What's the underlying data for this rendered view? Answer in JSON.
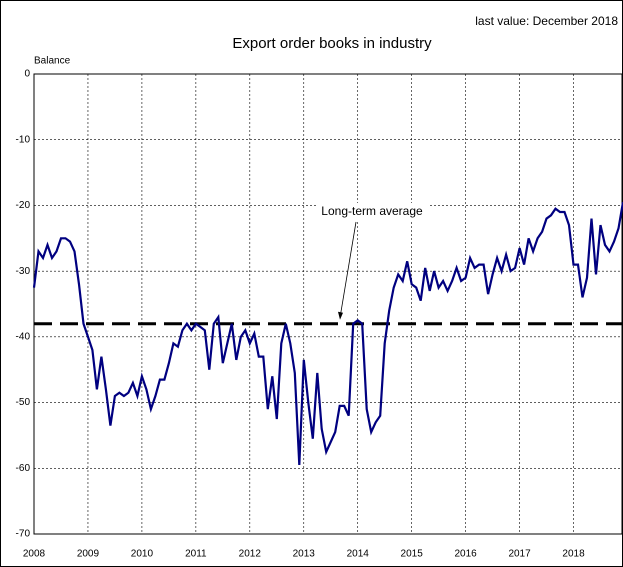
{
  "chart_data": {
    "type": "line",
    "title": "Export order books in industry",
    "subtitle": "last value: December 2018",
    "ylabel": "Balance",
    "annotation": "Long-term average",
    "average": -38,
    "xlim": [
      2008,
      2018.917
    ],
    "ylim": [
      -70,
      0
    ],
    "xticks": [
      2008,
      2009,
      2010,
      2011,
      2012,
      2013,
      2014,
      2015,
      2016,
      2017,
      2018
    ],
    "yticks": [
      0,
      -10,
      -20,
      -30,
      -40,
      -50,
      -60,
      -70
    ],
    "grid": true,
    "series": [
      {
        "name": "Balance",
        "color": "#000080",
        "values": [
          -32.5,
          -27,
          -28,
          -26,
          -28,
          -27,
          -25,
          -25,
          -25.5,
          -27,
          -32,
          -38,
          -40,
          -42,
          -48,
          -43,
          -48,
          -53.5,
          -49,
          -48.5,
          -49,
          -48.5,
          -47,
          -49,
          -46,
          -48,
          -51,
          -49,
          -46.5,
          -46.5,
          -44,
          -41,
          -41.5,
          -39,
          -38,
          -39,
          -38,
          -38.5,
          -39,
          -45,
          -38,
          -37,
          -44,
          -41,
          -38,
          -43.5,
          -40,
          -39,
          -41,
          -39.5,
          -43,
          -43,
          -51,
          -46,
          -52.5,
          -41,
          -38,
          -41,
          -45.5,
          -59.5,
          -43.5,
          -50,
          -55.5,
          -45.5,
          -54,
          -57.5,
          -56,
          -54.5,
          -50.5,
          -50.5,
          -52,
          -38,
          -37.5,
          -38,
          -51,
          -54.5,
          -53,
          -52,
          -41,
          -36,
          -32.5,
          -30.5,
          -31.5,
          -28.5,
          -32,
          -32.5,
          -34.5,
          -29.5,
          -33,
          -30,
          -32.5,
          -31.5,
          -33,
          -31.5,
          -29.5,
          -31.5,
          -31,
          -28,
          -29.5,
          -29,
          -29,
          -33.5,
          -30.5,
          -28,
          -30,
          -27.5,
          -30,
          -29.5,
          -26.5,
          -29,
          -25,
          -27,
          -25,
          -24,
          -22,
          -21.5,
          -20.5,
          -21,
          -21,
          -23,
          -29,
          -29,
          -34,
          -31,
          -22,
          -30.5,
          -23,
          -26,
          -27,
          -25.5,
          -23.5,
          -19.5
        ]
      }
    ]
  }
}
